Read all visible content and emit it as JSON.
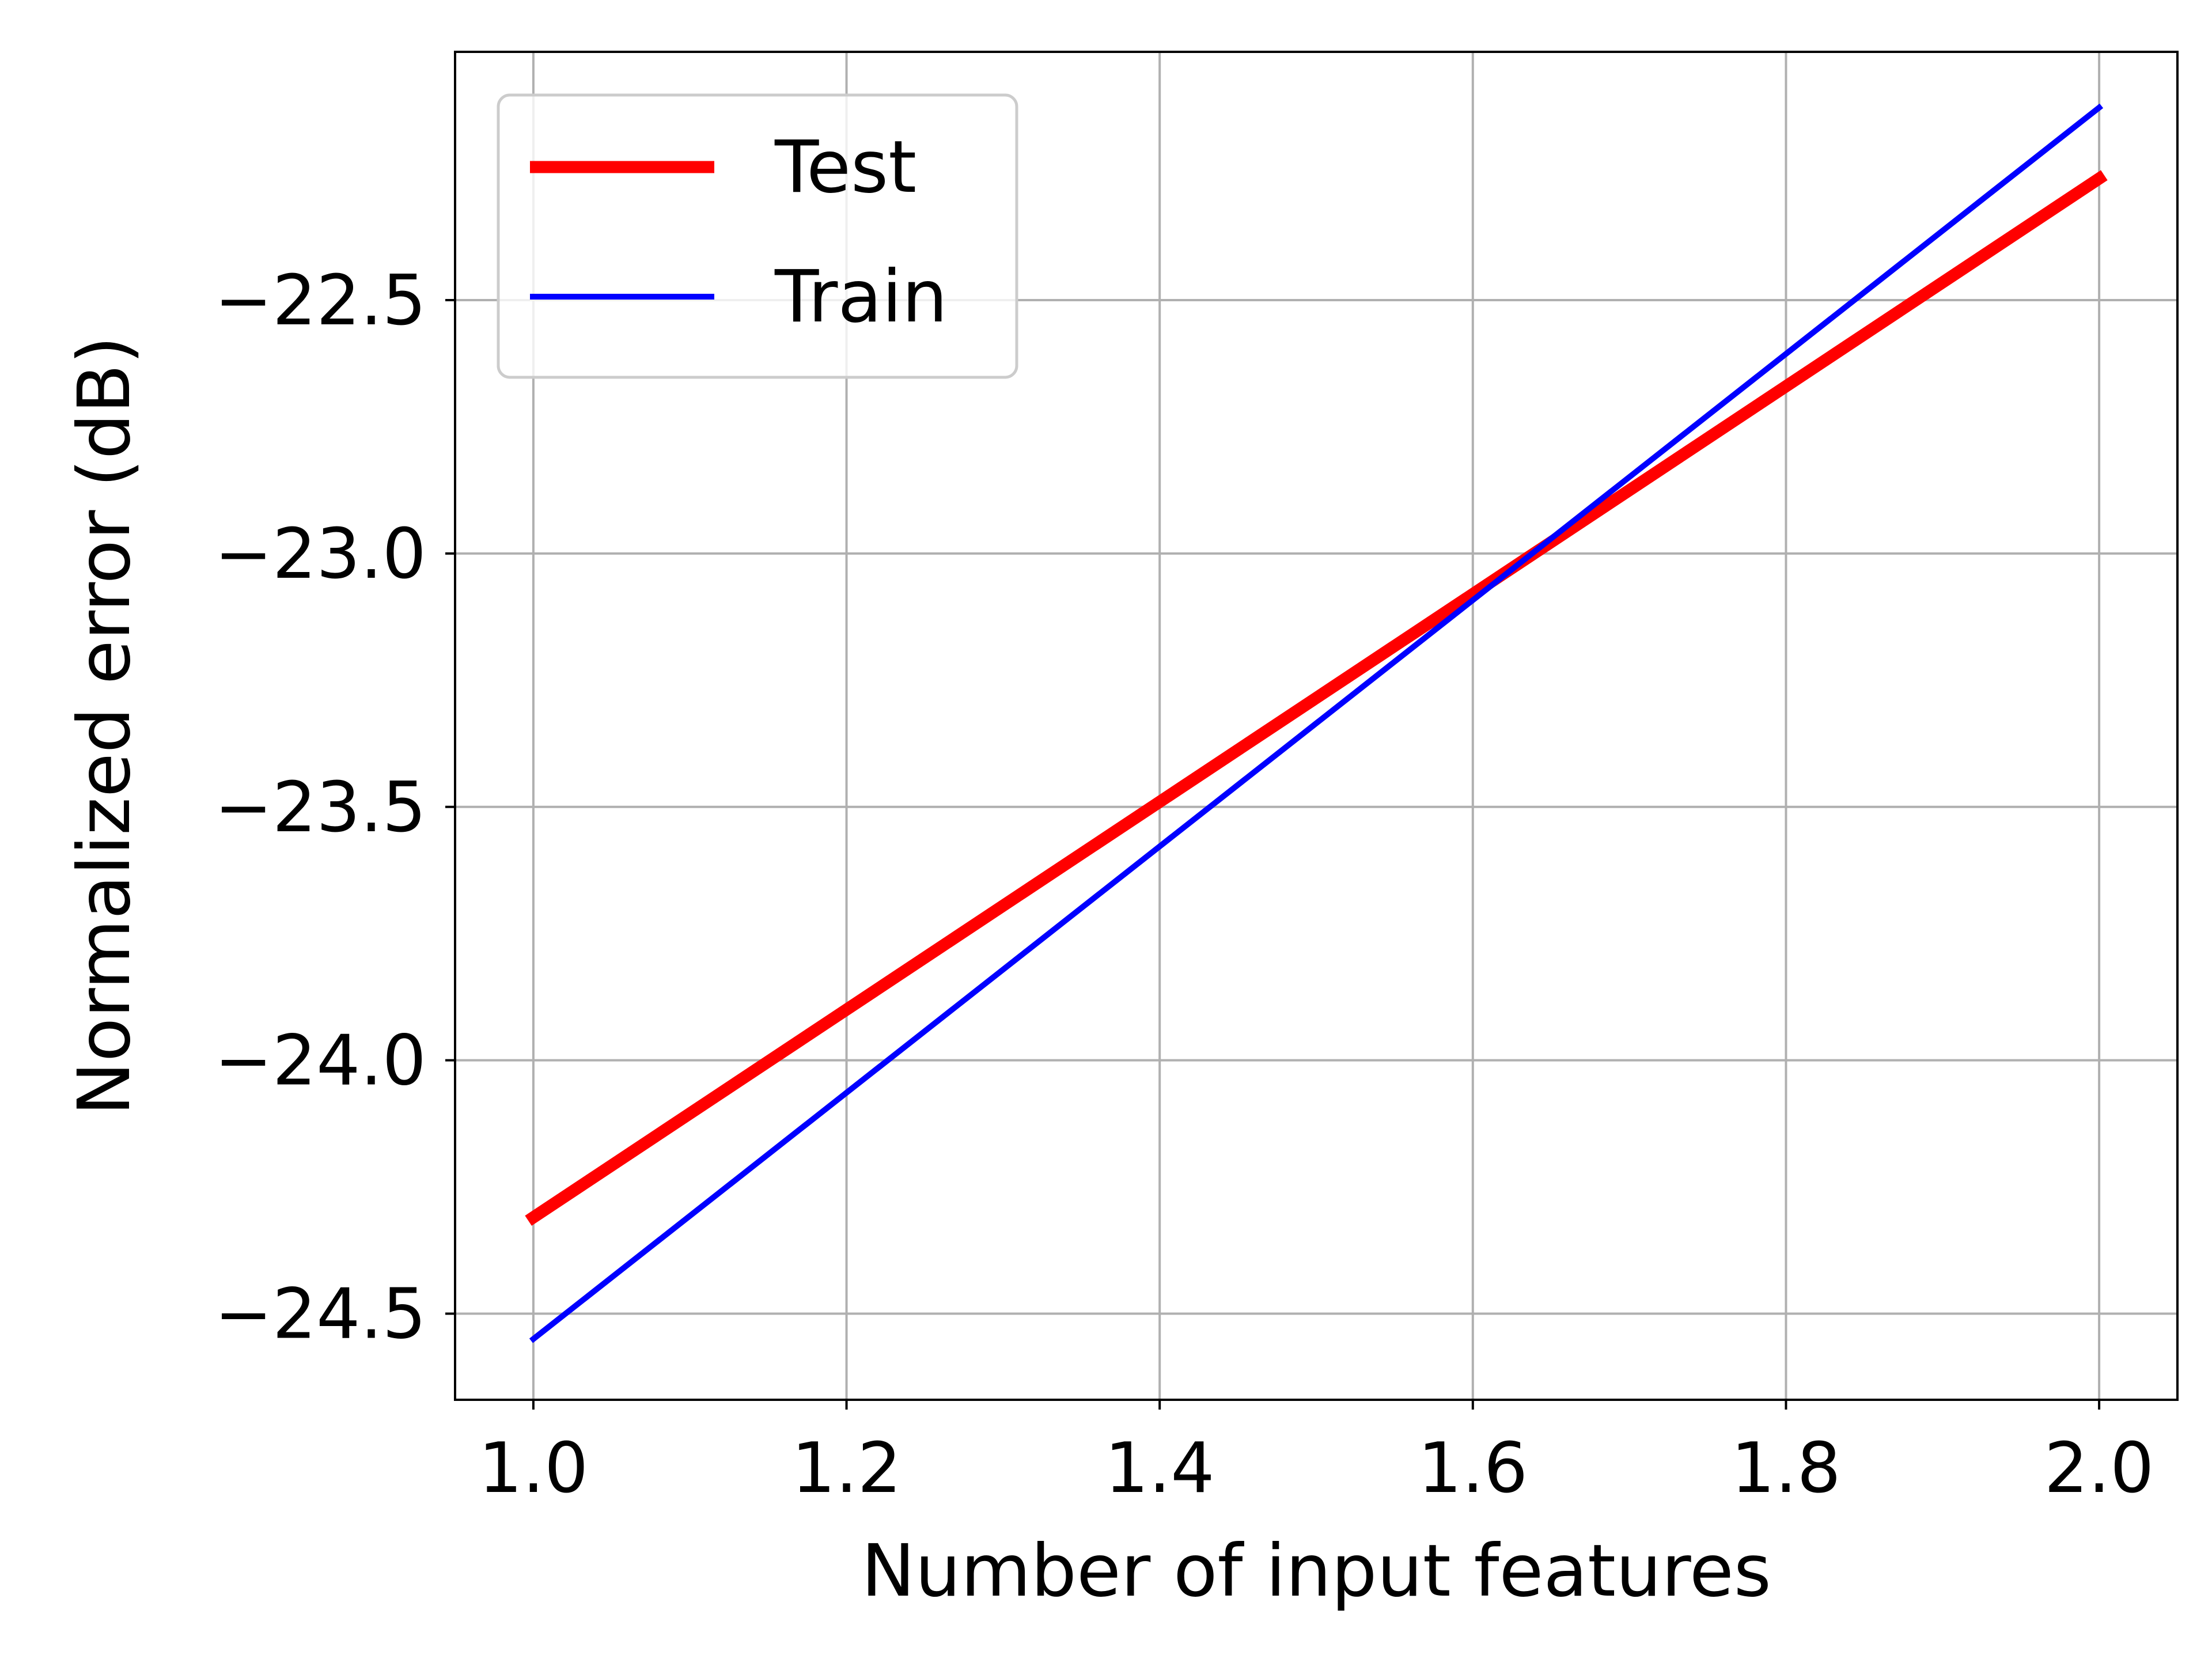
{
  "chart_data": {
    "type": "line",
    "title": "",
    "xlabel": "Number of input features",
    "ylabel": "Normalized error (dB)",
    "xlim": [
      0.95,
      2.05
    ],
    "ylim": [
      -24.67,
      -22.01
    ],
    "x_ticks": [
      1.0,
      1.2,
      1.4,
      1.6,
      1.8,
      2.0
    ],
    "x_tick_labels": [
      "1.0",
      "1.2",
      "1.4",
      "1.6",
      "1.8",
      "2.0"
    ],
    "y_ticks": [
      -22.5,
      -23.0,
      -23.5,
      -24.0,
      -24.5
    ],
    "y_tick_labels": [
      "−22.5",
      "−23.0",
      "−23.5",
      "−24.0",
      "−24.5"
    ],
    "grid": true,
    "legend_position": "upper-left",
    "series": [
      {
        "name": "Test",
        "color": "#ff0000",
        "line_style": "thick",
        "x": [
          1.0,
          2.0
        ],
        "y": [
          -24.31,
          -22.26
        ]
      },
      {
        "name": "Train",
        "color": "#0000ff",
        "line_style": "thin",
        "x": [
          1.0,
          2.0
        ],
        "y": [
          -24.55,
          -22.12
        ]
      }
    ]
  }
}
